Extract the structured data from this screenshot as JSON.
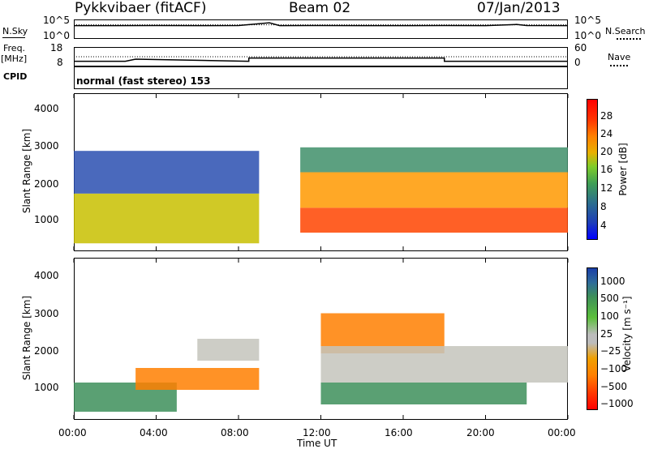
{
  "header": {
    "station": "Pykkvibaer (fitACF)",
    "beam": "Beam 02",
    "date": "07/Jan/2013"
  },
  "side_labels": {
    "nsky": "N.Sky",
    "nsearch": "N.Search",
    "freq_line1": "Freq.",
    "freq_line2": "[MHz]",
    "nave": "Nave",
    "cpid": "CPID"
  },
  "cpid_text": "normal (fast stereo) 153",
  "noise_axis": {
    "left": [
      "10^5",
      "10^0"
    ],
    "right": [
      "10^5",
      "10^0"
    ]
  },
  "freq_axis": {
    "left": [
      "18",
      "8"
    ],
    "right": [
      "60",
      "0"
    ]
  },
  "chart_data": [
    {
      "type": "line",
      "panel": "noise",
      "yscale": "log",
      "ylim": [
        1,
        100000
      ],
      "xlim": [
        0,
        24
      ],
      "series": [
        {
          "name": "N.Sky",
          "style": "solid",
          "x": [
            0,
            2,
            4,
            6,
            8,
            9.5,
            10,
            12,
            14,
            16,
            18,
            20,
            21.5,
            22,
            24
          ],
          "y": [
            4000,
            3800,
            4200,
            3900,
            4100,
            30000,
            4000,
            4100,
            3900,
            4000,
            4200,
            4000,
            9000,
            4100,
            4000
          ]
        },
        {
          "name": "N.Search",
          "style": "dotted",
          "x": [
            0,
            24
          ],
          "y": [
            7000,
            7000
          ]
        }
      ]
    },
    {
      "type": "line",
      "panel": "frequency",
      "ylim": [
        8,
        18
      ],
      "xlim": [
        0,
        24
      ],
      "series": [
        {
          "name": "Freq.",
          "style": "solid",
          "x": [
            0,
            2.5,
            3,
            8.5,
            8.5,
            18,
            18,
            24
          ],
          "y": [
            10.2,
            10.2,
            11.5,
            10.2,
            12.2,
            12.2,
            10.2,
            10.2
          ]
        },
        {
          "name": "Nave",
          "style": "dotted",
          "x": [
            0,
            24
          ],
          "y": [
            13,
            13
          ]
        }
      ]
    },
    {
      "type": "heatmap",
      "panel": "power",
      "ylabel": "Slant Range [km]",
      "yticks": [
        1000,
        2000,
        3000,
        4000
      ],
      "ylim": [
        200,
        4600
      ],
      "xlim": [
        0,
        24
      ],
      "colorbar": {
        "label": "Power [dB]",
        "ticks": [
          "4",
          "8",
          "12",
          "16",
          "20",
          "24",
          "28"
        ],
        "range": [
          0,
          30
        ]
      },
      "regions": [
        {
          "x": [
            0,
            9
          ],
          "y": [
            400,
            1800
          ],
          "value": 20
        },
        {
          "x": [
            0,
            9
          ],
          "y": [
            1800,
            3000
          ],
          "value": 8
        },
        {
          "x": [
            11,
            24
          ],
          "y": [
            700,
            1400
          ],
          "value": 26
        },
        {
          "x": [
            11,
            24
          ],
          "y": [
            1400,
            2400
          ],
          "value": 22
        },
        {
          "x": [
            11,
            24
          ],
          "y": [
            2400,
            3100
          ],
          "value": 12
        }
      ]
    },
    {
      "type": "heatmap",
      "panel": "velocity",
      "ylabel": "Slant Range [km]",
      "yticks": [
        1000,
        2000,
        3000,
        4000
      ],
      "ylim": [
        200,
        4600
      ],
      "xlim": [
        0,
        24
      ],
      "xticks": [
        "00:00",
        "04:00",
        "08:00",
        "12:00",
        "16:00",
        "20:00",
        "00:00"
      ],
      "xlabel": "Time UT",
      "colorbar": {
        "label": "Velocity [m s⁻¹]",
        "ticks": [
          "1000",
          "500",
          "100",
          "25",
          "−25",
          "−100",
          "−500",
          "−1000"
        ]
      },
      "regions": [
        {
          "x": [
            0,
            5
          ],
          "y": [
            400,
            1200
          ],
          "value": 300
        },
        {
          "x": [
            3,
            9
          ],
          "y": [
            1000,
            1600
          ],
          "value": -150
        },
        {
          "x": [
            6,
            9
          ],
          "y": [
            1800,
            2400
          ],
          "value": 0
        },
        {
          "x": [
            12,
            18
          ],
          "y": [
            2000,
            3100
          ],
          "value": -200
        },
        {
          "x": [
            12,
            24
          ],
          "y": [
            1200,
            2200
          ],
          "value": 0
        },
        {
          "x": [
            12,
            22
          ],
          "y": [
            600,
            1200
          ],
          "value": 200
        }
      ]
    }
  ]
}
